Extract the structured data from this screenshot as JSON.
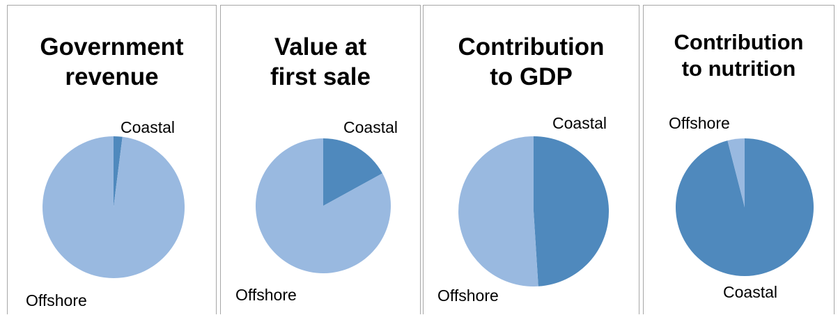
{
  "colors": {
    "coastal": "#4f89bd",
    "offshore": "#99b9e0",
    "border": "#a6a6a6"
  },
  "chart_data": [
    {
      "type": "pie",
      "title_lines": [
        "Government",
        "revenue"
      ],
      "slices": [
        {
          "label": "Coastal",
          "value": 2
        },
        {
          "label": "Offshore",
          "value": 98
        }
      ]
    },
    {
      "type": "pie",
      "title_lines": [
        "Value at",
        "first sale"
      ],
      "slices": [
        {
          "label": "Coastal",
          "value": 17
        },
        {
          "label": "Offshore",
          "value": 83
        }
      ]
    },
    {
      "type": "pie",
      "title_lines": [
        "Contribution",
        "to GDP"
      ],
      "slices": [
        {
          "label": "Coastal",
          "value": 49
        },
        {
          "label": "Offshore",
          "value": 51
        }
      ]
    },
    {
      "type": "pie",
      "title_lines": [
        "Contribution",
        "to nutrition"
      ],
      "slices": [
        {
          "label": "Coastal",
          "value": 96
        },
        {
          "label": "Offshore",
          "value": 4
        }
      ]
    }
  ]
}
